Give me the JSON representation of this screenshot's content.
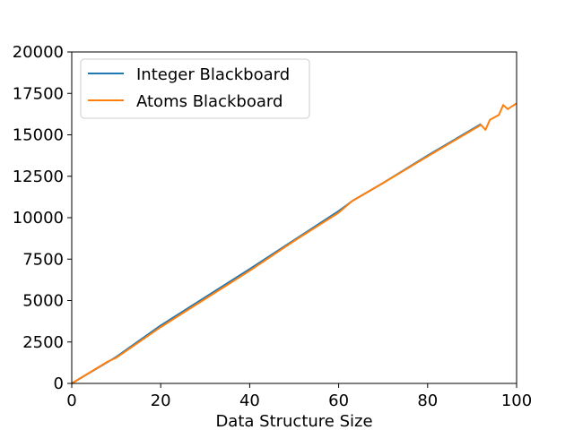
{
  "chart_data": {
    "type": "line",
    "title": "",
    "xlabel": "Data Structure Size",
    "ylabel": "",
    "xlim": [
      0,
      100
    ],
    "ylim": [
      0,
      20000
    ],
    "x_ticks": [
      "0",
      "20",
      "40",
      "60",
      "80",
      "100"
    ],
    "y_ticks": [
      "0",
      "2500",
      "5000",
      "7500",
      "10000",
      "12500",
      "15000",
      "17500",
      "20000"
    ],
    "grid": false,
    "legend_position": "top-left",
    "series": [
      {
        "name": "Integer Blackboard",
        "color": "#1f77b4",
        "x": [
          0,
          10,
          20,
          30,
          40,
          50,
          60,
          63,
          70,
          80,
          92
        ],
        "y": [
          0,
          1600,
          3500,
          5200,
          6900,
          8650,
          10400,
          11000,
          12100,
          13750,
          15650
        ]
      },
      {
        "name": "Atoms Blackboard",
        "color": "#ff7f0e",
        "x": [
          0,
          8,
          10,
          20,
          30,
          40,
          50,
          60,
          63,
          70,
          80,
          92,
          93,
          94,
          96,
          97,
          98,
          100
        ],
        "y": [
          0,
          1300,
          1550,
          3400,
          5100,
          6800,
          8600,
          10300,
          11000,
          12100,
          13700,
          15600,
          15300,
          15900,
          16200,
          16800,
          16550,
          16900
        ]
      }
    ]
  }
}
